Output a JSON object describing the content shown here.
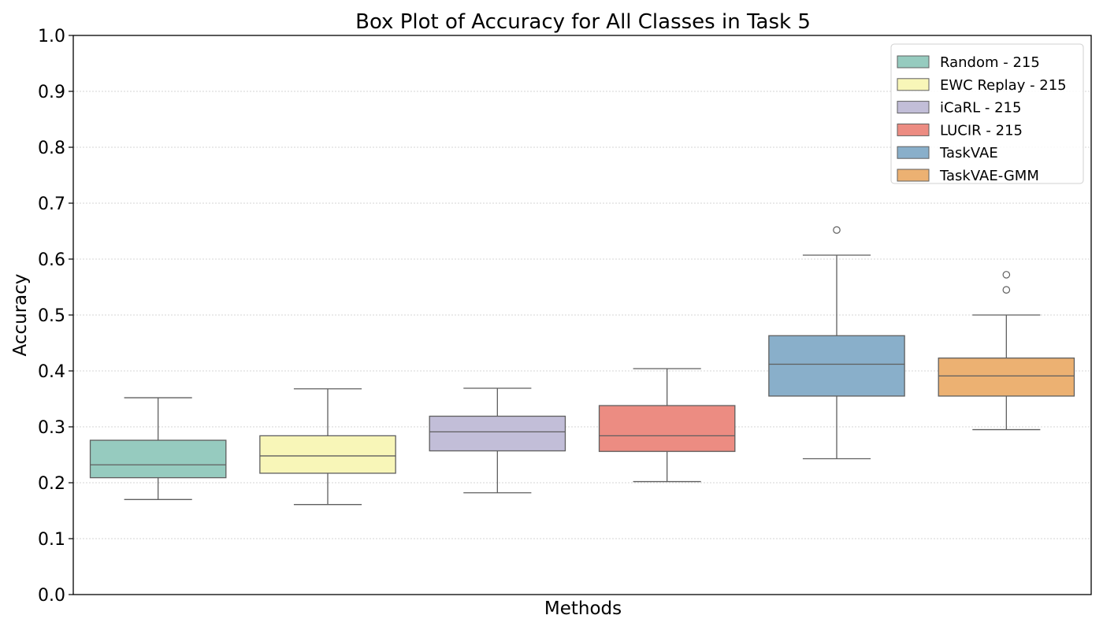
{
  "chart_data": {
    "type": "box",
    "title": "Box Plot of Accuracy for All Classes in Task 5",
    "xlabel": "Methods",
    "ylabel": "Accuracy",
    "ylim": [
      0.0,
      1.0
    ],
    "yticks": [
      "0.0",
      "0.1",
      "0.2",
      "0.3",
      "0.4",
      "0.5",
      "0.6",
      "0.7",
      "0.8",
      "0.9",
      "1.0"
    ],
    "grid": "y-dotted",
    "legend_position": "top-right",
    "series": [
      {
        "name": "Random - 215",
        "color": "#96cbbf",
        "whisker_low": 0.17,
        "q1": 0.209,
        "median": 0.232,
        "q3": 0.276,
        "whisker_high": 0.352,
        "outliers": []
      },
      {
        "name": "EWC Replay - 215",
        "color": "#f8f6b8",
        "whisker_low": 0.161,
        "q1": 0.217,
        "median": 0.248,
        "q3": 0.284,
        "whisker_high": 0.368,
        "outliers": []
      },
      {
        "name": "iCaRL - 215",
        "color": "#c2bed8",
        "whisker_low": 0.182,
        "q1": 0.257,
        "median": 0.291,
        "q3": 0.319,
        "whisker_high": 0.369,
        "outliers": []
      },
      {
        "name": "LUCIR - 215",
        "color": "#ec8c82",
        "whisker_low": 0.202,
        "q1": 0.256,
        "median": 0.284,
        "q3": 0.338,
        "whisker_high": 0.404,
        "outliers": []
      },
      {
        "name": "TaskVAE",
        "color": "#89afca",
        "whisker_low": 0.243,
        "q1": 0.355,
        "median": 0.412,
        "q3": 0.463,
        "whisker_high": 0.607,
        "outliers": [
          0.652
        ]
      },
      {
        "name": "TaskVAE-GMM",
        "color": "#ecb172",
        "whisker_low": 0.295,
        "q1": 0.355,
        "median": 0.391,
        "q3": 0.423,
        "whisker_high": 0.5,
        "outliers": [
          0.545,
          0.572
        ]
      }
    ]
  }
}
